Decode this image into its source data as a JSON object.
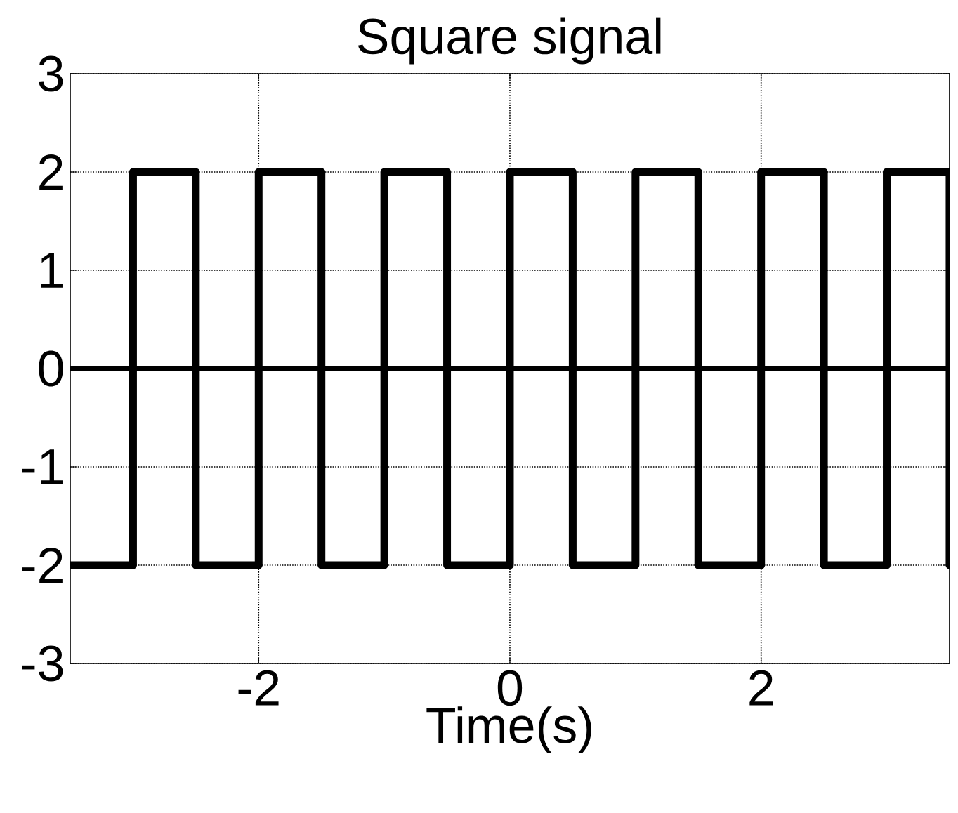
{
  "chart_data": {
    "type": "step",
    "title": "Square signal",
    "xlabel": "Time(s)",
    "x": [
      -3.5,
      -3,
      -2.5,
      -2,
      -1.5,
      -1,
      -0.5,
      0,
      0.5,
      1,
      1.5,
      2,
      2.5,
      3,
      3.5
    ],
    "values": [
      -2,
      2,
      -2,
      2,
      -2,
      2,
      -2,
      2,
      -2,
      2,
      -2,
      2,
      -2,
      2,
      -2
    ],
    "color": "#000000",
    "line_style": "solid",
    "xlim": [
      -3.5,
      3.5
    ],
    "ylim": [
      -3,
      3
    ],
    "xticks": [
      -2,
      0,
      2
    ],
    "yticks": [
      -3,
      -2,
      -1,
      0,
      1,
      2,
      3
    ],
    "grid": true,
    "ref_lines": [
      {
        "axis": "y",
        "value": 0,
        "color": "#000000",
        "line_style": "solid"
      }
    ]
  }
}
